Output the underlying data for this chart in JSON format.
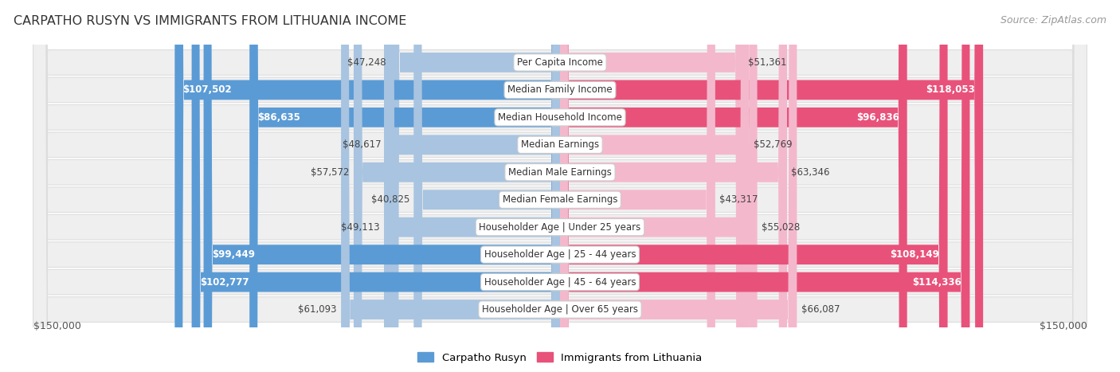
{
  "title": "CARPATHO RUSYN VS IMMIGRANTS FROM LITHUANIA INCOME",
  "source": "Source: ZipAtlas.com",
  "categories": [
    "Per Capita Income",
    "Median Family Income",
    "Median Household Income",
    "Median Earnings",
    "Median Male Earnings",
    "Median Female Earnings",
    "Householder Age | Under 25 years",
    "Householder Age | 25 - 44 years",
    "Householder Age | 45 - 64 years",
    "Householder Age | Over 65 years"
  ],
  "left_values": [
    47248,
    107502,
    86635,
    48617,
    57572,
    40825,
    49113,
    99449,
    102777,
    61093
  ],
  "right_values": [
    51361,
    118053,
    96836,
    52769,
    63346,
    43317,
    55028,
    108149,
    114336,
    66087
  ],
  "left_labels": [
    "$47,248",
    "$107,502",
    "$86,635",
    "$48,617",
    "$57,572",
    "$40,825",
    "$49,113",
    "$99,449",
    "$102,777",
    "$61,093"
  ],
  "right_labels": [
    "$51,361",
    "$118,053",
    "$96,836",
    "$52,769",
    "$63,346",
    "$43,317",
    "$55,028",
    "$108,149",
    "$114,336",
    "$66,087"
  ],
  "left_color_low": "#a8c4e0",
  "left_color_high": "#5b9bd5",
  "right_color_low": "#f4b8cc",
  "right_color_high": "#e8527a",
  "label_inside_color": "#ffffff",
  "label_outside_color": "#555555",
  "max_value": 150000,
  "inside_threshold": 75000,
  "legend_left": "Carpatho Rusyn",
  "legend_right": "Immigrants from Lithuania",
  "background_color": "#ffffff",
  "row_bg_color": "#eeeeee",
  "row_bg_alt_color": "#e8e8e8",
  "xlabel_left": "$150,000",
  "xlabel_right": "$150,000"
}
